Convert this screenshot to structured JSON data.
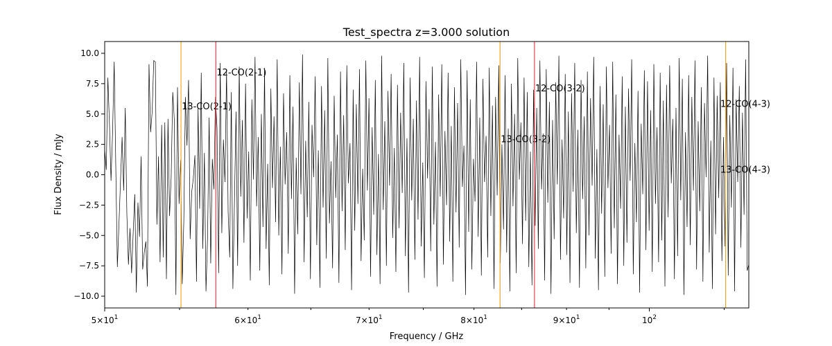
{
  "chart_data": {
    "type": "line",
    "title": "Test_spectra z=3.000 solution",
    "xlabel": "Frequency / GHz",
    "ylabel": "Flux Density / mJy",
    "xscale": "log",
    "xlim": [
      50,
      113.5
    ],
    "ylim": [
      -11,
      11
    ],
    "grid": false,
    "x_ticks": [
      {
        "value": 50,
        "base": "5",
        "exp": "1",
        "minor": false
      },
      {
        "value": 60,
        "base": "6",
        "exp": "1",
        "minor": true
      },
      {
        "value": 70,
        "base": "7",
        "exp": "1",
        "minor": true
      },
      {
        "value": 80,
        "base": "8",
        "exp": "1",
        "minor": true
      },
      {
        "value": 90,
        "base": "9",
        "exp": "1",
        "minor": true
      },
      {
        "value": 100,
        "base": "10",
        "exp": "2",
        "minor": false
      }
    ],
    "y_ticks": [
      "10.0",
      "7.5",
      "5.0",
      "2.5",
      "0.0",
      "−2.5",
      "−5.0",
      "−7.5",
      "−10.0"
    ],
    "y_tick_values": [
      10,
      7.5,
      5,
      2.5,
      0,
      -2.5,
      -5,
      -7.5,
      -10
    ],
    "spectrum": {
      "color": "#000000",
      "x_start": 50,
      "x_end": 113.5,
      "y": [
        2.1,
        0.4,
        8.0,
        4.2,
        -0.5,
        3.6,
        9.3,
        0.8,
        -7.6,
        -4.1,
        -0.5,
        3.1,
        -1.3,
        5.5,
        -3.2,
        -7.4,
        -4.4,
        -8.1,
        -4.8,
        -1.6,
        -9.7,
        -2.3,
        -5.1,
        1.5,
        -7.8,
        -6.4,
        -5.5,
        -9.2,
        9.1,
        3.5,
        5.2,
        9.4,
        9.3,
        -4.1,
        1.5,
        -7.2,
        4.1,
        -6.8,
        4.3,
        -8.6,
        4.6,
        -3.4,
        -0.2,
        6.8,
        4.5,
        -9.9,
        7.2,
        -2.4,
        1.2,
        -9.0,
        -3.8,
        6.4,
        2.4,
        7.8,
        -5.3,
        -1.4,
        -0.3,
        1.6,
        -8.8,
        5.5,
        -2.8,
        8.4,
        -6.1,
        1.8,
        -9.6,
        -5.2,
        4.7,
        -7.3,
        1.3,
        -1.2,
        6.4,
        3.8,
        -8.1,
        9.2,
        -4.8,
        2.9,
        -0.6,
        8.6,
        -3.1,
        -6.8,
        6.8,
        -9.4,
        -2.2,
        5.2,
        -7.5,
        8.9,
        -1.8,
        4.5,
        -5.6,
        7.5,
        -3.6,
        1.9,
        -8.7,
        6.2,
        -0.4,
        9.7,
        -2.6,
        3.1,
        -7.9,
        5.0,
        -4.3,
        8.8,
        -6.1,
        0.9,
        -9.1,
        7.1,
        -1.1,
        4.8,
        -3.9,
        9.5,
        -5.0,
        2.3,
        -8.2,
        6.7,
        -0.8,
        3.5,
        -6.5,
        8.2,
        -2.0,
        5.6,
        -9.8,
        1.4,
        -4.9,
        7.6,
        -1.6,
        9.9,
        -7.2,
        2.8,
        -3.5,
        6.0,
        -8.6,
        4.1,
        -0.2,
        8.1,
        -5.8,
        2.0,
        -9.3,
        7.3,
        -2.7,
        5.3,
        -6.9,
        9.6,
        -4.0,
        1.1,
        -7.7,
        6.5,
        -1.9,
        3.3,
        -8.9,
        8.5,
        -3.0,
        4.9,
        -6.2,
        9.0,
        -0.7,
        2.6,
        -9.5,
        7.0,
        -4.6,
        5.8,
        -2.4,
        8.7,
        -7.1,
        0.5,
        -5.4,
        9.4,
        -1.3,
        6.3,
        -8.4,
        3.9,
        -3.3,
        7.8,
        -6.6,
        1.7,
        -9.0,
        9.8,
        -2.9,
        4.4,
        -7.5,
        6.9,
        -0.9,
        8.3,
        -5.2,
        2.2,
        -8.0,
        7.4,
        -4.4,
        5.1,
        -1.5,
        9.2,
        -6.7,
        3.0,
        -9.7,
        8.0,
        -2.1,
        4.6,
        -7.0,
        6.1,
        -3.7,
        9.7,
        -5.9,
        1.0,
        -8.5,
        7.7,
        -0.3,
        5.4,
        -6.3,
        8.9,
        -4.1,
        2.7,
        -9.2,
        6.6,
        -1.8,
        9.1,
        -7.4,
        3.6,
        -2.5,
        8.4,
        -5.5,
        4.0,
        -8.8,
        7.2,
        -3.1,
        5.9,
        -6.0,
        9.5,
        -1.0,
        2.4,
        -9.9,
        8.6,
        -4.7,
        6.2,
        -7.8,
        1.3,
        -2.2,
        9.3,
        -5.1,
        4.7,
        -8.3,
        7.9,
        -0.6,
        3.2,
        -6.8,
        8.8,
        -3.4,
        5.7,
        -9.4,
        6.4,
        -1.7,
        9.0,
        -7.3,
        2.5,
        -4.5,
        8.2,
        -6.4,
        3.8,
        -9.6,
        7.5,
        -2.6,
        5.0,
        -8.1,
        9.6,
        -0.4,
        4.3,
        -5.7,
        8.0,
        -3.8,
        6.8,
        -7.6,
        1.9,
        -9.1,
        7.0,
        -4.2,
        5.5,
        -6.1,
        9.4,
        -1.2,
        3.4,
        -8.7,
        8.7,
        -2.3,
        6.0,
        -9.8,
        4.5,
        -5.3,
        7.6,
        -0.8,
        9.8,
        -7.0,
        2.9,
        -3.6,
        8.3,
        -6.6,
        5.2,
        -8.9,
        6.7,
        -1.4,
        9.2,
        -4.8,
        3.7,
        -9.3,
        7.8,
        -2.0,
        4.8,
        -7.7,
        8.5,
        -5.0,
        6.3,
        -0.9,
        9.7,
        -6.9,
        2.1,
        -9.5,
        7.3,
        -3.2,
        5.8,
        -8.4,
        8.9,
        -1.1,
        4.1,
        -6.5,
        9.3,
        -4.4,
        6.6,
        -9.0,
        3.3,
        -2.8,
        8.1,
        -7.5,
        5.6,
        -5.6,
        7.1,
        -0.5,
        9.5,
        -8.2,
        2.6,
        -3.9,
        6.9,
        -9.7,
        4.2,
        -1.6,
        8.6,
        -6.2,
        7.7,
        -4.6,
        5.3,
        -8.0,
        9.1,
        -2.4,
        3.9,
        -7.2,
        8.4,
        -5.4,
        6.1,
        -9.2,
        7.4,
        -3.5,
        9.0,
        -0.7,
        4.6,
        -8.6,
        5.5,
        -6.7,
        9.6,
        -2.1,
        7.9,
        -9.9,
        3.5,
        -4.3,
        8.2,
        -5.8,
        6.4,
        -1.3,
        9.4,
        -7.8,
        4.4,
        -3.0,
        7.2,
        -8.8,
        5.9,
        -0.2,
        9.8,
        -6.4,
        2.8,
        -9.4,
        8.0,
        -4.9,
        6.5,
        -1.9,
        7.6,
        -7.1,
        3.1,
        -5.9,
        9.2,
        -8.3,
        4.9,
        -2.7,
        8.8,
        -9.6,
        6.2,
        -0.6,
        7.3,
        -6.0,
        5.1,
        -3.3,
        9.5,
        -7.9,
        -7.4
      ]
    },
    "lines": [
      {
        "label": "13-CO(2-1)",
        "x": 55.1,
        "color": "#f5a623",
        "label_y": 5.6
      },
      {
        "label": "12-CO(2-1)",
        "x": 57.6,
        "color": "#e8404e",
        "label_y": 8.4
      },
      {
        "label": "13-CO(3-2)",
        "x": 82.7,
        "color": "#f5a623",
        "label_y": 2.9
      },
      {
        "label": "12-CO(3-2)",
        "x": 86.4,
        "color": "#e8404e",
        "label_y": 7.1
      },
      {
        "label": "13-CO(4-3)",
        "x": 110.2,
        "color": "#f5a623",
        "label_y": 0.4
      },
      {
        "label": "12-CO(4-3)",
        "x": 115.3,
        "color": "#e8404e",
        "label_y": 5.8
      }
    ]
  }
}
